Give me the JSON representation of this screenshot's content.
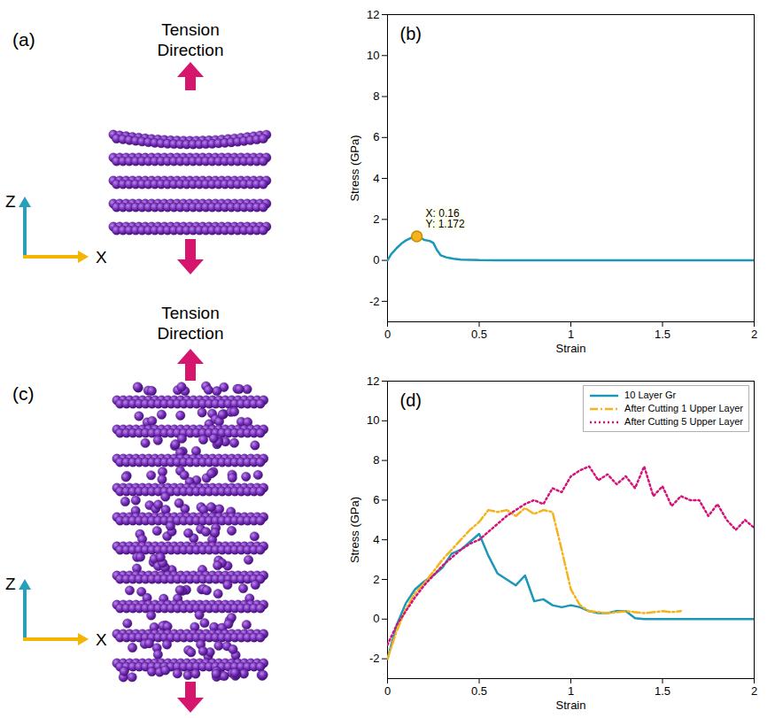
{
  "chart_data": [
    {
      "type": "line",
      "panel_label": "(b)",
      "x_label": "Strain",
      "y_label": "Stress (GPa)",
      "x": [
        0,
        0.02,
        0.05,
        0.08,
        0.1,
        0.13,
        0.16,
        0.18,
        0.2,
        0.23,
        0.25,
        0.27,
        0.29,
        0.32,
        0.36,
        0.4,
        0.5,
        0.6,
        0.8,
        1,
        1.2,
        1.4,
        1.6,
        1.8,
        2
      ],
      "values": [
        0,
        0.3,
        0.6,
        0.85,
        0.97,
        1.1,
        1.172,
        1.12,
        1.0,
        0.95,
        0.85,
        0.5,
        0.25,
        0.15,
        0.08,
        0.04,
        0.01,
        0,
        0,
        0,
        0,
        0,
        0,
        0,
        0
      ],
      "color": "#1b98b8",
      "line_style": "solid",
      "annotation": {
        "x": 0.16,
        "y": 1.172,
        "labels": [
          "X: 0.16",
          "Y: 1.172"
        ],
        "color": "#f5b21b"
      },
      "xlim": [
        0,
        2
      ],
      "xticks": [
        0,
        0.5,
        1,
        1.5,
        2
      ],
      "ylim": [
        -3,
        12
      ],
      "yticks": [
        -2,
        0,
        2,
        4,
        6,
        8,
        10,
        12
      ],
      "grid": false
    },
    {
      "type": "line",
      "panel_label": "(d)",
      "x_label": "Strain",
      "y_label": "Stress (GPa)",
      "x": [
        0,
        0.05,
        0.1,
        0.15,
        0.2,
        0.25,
        0.3,
        0.35,
        0.4,
        0.45,
        0.5,
        0.55,
        0.6,
        0.65,
        0.7,
        0.75,
        0.8,
        0.85,
        0.9,
        0.95,
        1,
        1.05,
        1.1,
        1.15,
        1.2,
        1.25,
        1.3,
        1.35,
        1.4,
        1.45,
        1.5,
        1.55,
        1.6,
        1.65,
        1.7,
        1.75,
        1.8,
        1.85,
        1.9,
        1.95,
        2
      ],
      "series": [
        {
          "name": "10 Layer Gr",
          "color": "#1b98b8",
          "line_style": "solid",
          "values": [
            -2,
            -0.3,
            0.8,
            1.5,
            1.9,
            2.2,
            2.6,
            3.3,
            3.5,
            3.9,
            4.3,
            3.2,
            2.3,
            2.0,
            1.7,
            2.2,
            0.9,
            1.0,
            0.7,
            0.6,
            0.7,
            0.6,
            0.4,
            0.3,
            0.3,
            0.4,
            0.4,
            0.05,
            0,
            0,
            0,
            0,
            0,
            0,
            0,
            0,
            0,
            0,
            0,
            0,
            0
          ]
        },
        {
          "name": "After Cutting 1 Upper Layer",
          "color": "#f5b21b",
          "line_style": "dashdot",
          "values": [
            -2,
            -0.6,
            0.5,
            1.3,
            1.8,
            2.4,
            3.0,
            3.5,
            4.0,
            4.5,
            4.9,
            5.5,
            5.4,
            5.5,
            5.2,
            5.6,
            5.3,
            5.5,
            5.4,
            3.5,
            1.5,
            0.7,
            0.4,
            0.35,
            0.3,
            0.35,
            0.4,
            0.35,
            0.3,
            0.35,
            0.4,
            0.35,
            0.4,
            null,
            null,
            null,
            null,
            null,
            null,
            null,
            null
          ]
        },
        {
          "name": "After Cutting 5 Upper Layer",
          "color": "#d4127a",
          "line_style": "dotted",
          "values": [
            -1.3,
            -0.3,
            0.4,
            1.1,
            1.7,
            2.2,
            2.7,
            3.1,
            3.5,
            3.8,
            4.0,
            4.4,
            4.8,
            5.2,
            5.5,
            5.8,
            6.0,
            5.8,
            6.6,
            6.4,
            7.2,
            7.5,
            7.7,
            7.0,
            7.3,
            6.8,
            7.2,
            6.6,
            7.7,
            6.2,
            6.7,
            5.7,
            6.2,
            6.0,
            6.0,
            5.2,
            5.8,
            5.0,
            4.5,
            5.0,
            4.6
          ]
        }
      ],
      "legend": "top-right",
      "xlim": [
        0,
        2
      ],
      "xticks": [
        0,
        0.5,
        1,
        1.5,
        2
      ],
      "ylim": [
        -3,
        12
      ],
      "yticks": [
        -2,
        0,
        2,
        4,
        6,
        8,
        10,
        12
      ],
      "grid": false
    }
  ],
  "diagrams": [
    {
      "panel_label": "(a)",
      "label": "Tension Direction",
      "axis_labels": [
        "Z",
        "X"
      ],
      "layers": 5
    },
    {
      "panel_label": "(c)",
      "label": "Tension Direction",
      "axis_labels": [
        "Z",
        "X"
      ],
      "layers": 10
    }
  ]
}
